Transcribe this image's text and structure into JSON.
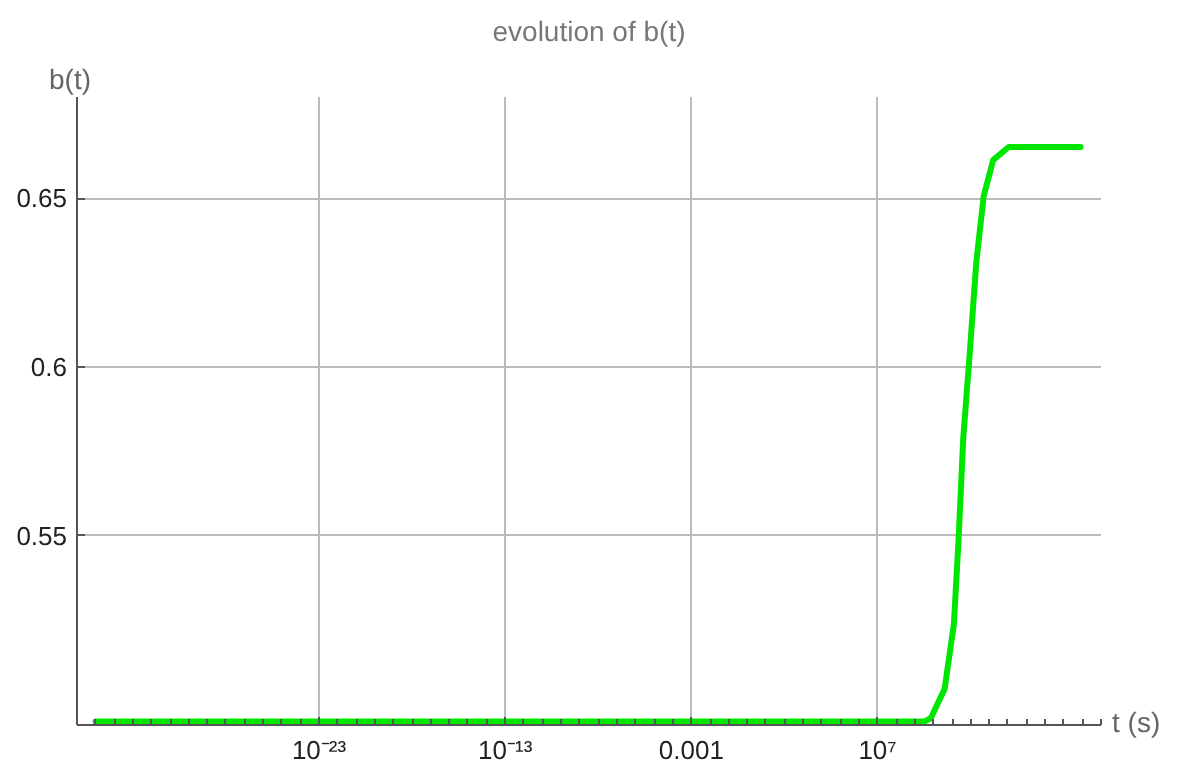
{
  "chart_data": {
    "type": "line",
    "title": "evolution of b(t)",
    "xlabel": "t (s)",
    "ylabel": "b(t)",
    "log": "x",
    "x": [
      1e-35,
      1000000000.0,
      3160000000.0,
      7200000000.0,
      40000000000.0,
      126000000000.0,
      224000000000.0,
      400000000000.0,
      890000000000.0,
      2000000000000.0,
      5000000000000.0,
      16000000000000.0,
      110000000000000.0,
      8e+17
    ],
    "series": [
      {
        "color": "#00e600",
        "values": [
          0.495,
          0.495,
          0.495,
          0.496,
          0.5047,
          0.524,
          0.549,
          0.579,
          0.604,
          0.631,
          0.6506,
          0.6613,
          0.6652,
          0.6652
        ]
      }
    ],
    "xlim": [
      1e-36,
      1e+19
    ],
    "ylim": [
      0.494,
      0.68
    ],
    "xticks": [
      {
        "value": 1e-23,
        "label": "10⁻²³"
      },
      {
        "value": 1e-13,
        "label": "10⁻¹³"
      },
      0.001,
      {
        "value": 10000000.0,
        "label": "10⁷"
      }
    ],
    "yticks": [
      0.55,
      0.6,
      0.65
    ],
    "grid": true,
    "marker": "none",
    "line_style": "solid"
  }
}
